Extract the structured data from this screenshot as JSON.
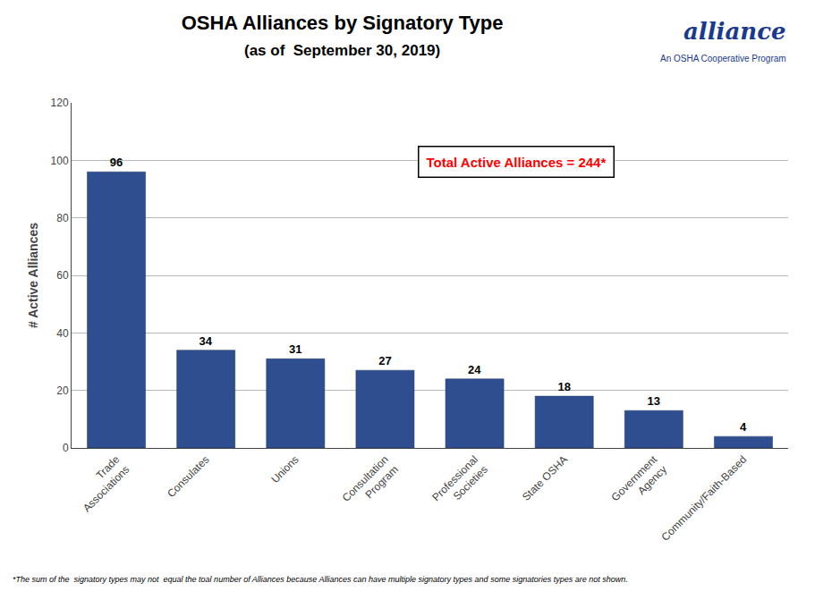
{
  "chart_data": {
    "type": "bar",
    "title": "OSHA Alliances by Signatory Type",
    "subtitle": "(as of  September 30, 2019)",
    "categories": [
      "Trade\nAssociations",
      "Consulates",
      "Unions",
      "Consultation\nProgram",
      "Professional\nSocieties",
      "State OSHA",
      "Government\nAgency",
      "Community/Faith-Based"
    ],
    "values": [
      96,
      34,
      31,
      27,
      24,
      18,
      13,
      4
    ],
    "color": "#2E4E8F",
    "ylabel": "# Active Alliances",
    "ylim": [
      0,
      120
    ],
    "yticks": [
      0,
      20,
      40,
      60,
      80,
      100,
      120
    ],
    "grid": true,
    "data_labels": true,
    "annotations": [
      {
        "text": "Total Active Alliances = 244*",
        "color": "#FF0000"
      },
      {
        "text": "alliance",
        "color": "#1a3a8f"
      },
      {
        "text": "An OSHA Cooperative Program",
        "color": "#1a3a8f"
      }
    ],
    "footnote": "*The sum of the  signatory types may not  equal the toal number of Alliances because Alliances can have multiple signatory types and some signatories types are not shown."
  }
}
